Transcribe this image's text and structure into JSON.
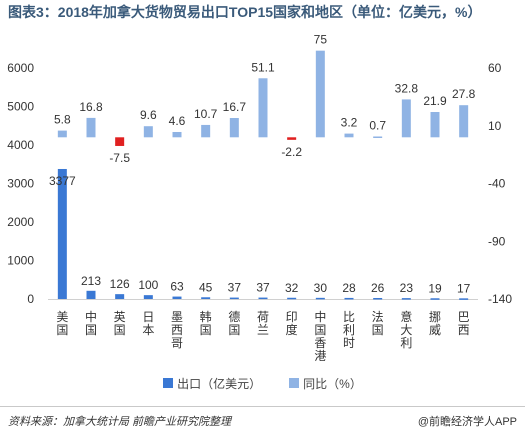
{
  "title": "图表3：2018年加拿大货物贸易出口TOP15国家和地区（单位：亿美元，%）",
  "footer": {
    "source": "资料来源：加拿大统计局 前瞻产业研究院整理",
    "brand": "@前瞻经济学人APP"
  },
  "colors": {
    "export_bar": "#3a78d4",
    "growth_bar": "#8fb3e4",
    "negative_growth": "#e02020"
  },
  "chart_data": {
    "type": "bar",
    "categories": [
      "美国",
      "中国",
      "英国",
      "日本",
      "墨西哥",
      "韩国",
      "德国",
      "荷兰",
      "印度",
      "中国香港",
      "比利时",
      "法国",
      "意大利",
      "挪威",
      "巴西"
    ],
    "series": [
      {
        "name": "出口（亿美元）",
        "axis": "left",
        "values": [
          3377,
          213,
          126,
          100,
          63,
          45,
          37,
          37,
          32,
          30,
          28,
          26,
          23,
          19,
          17
        ]
      },
      {
        "name": "同比（%）",
        "axis": "right",
        "values": [
          5.8,
          16.8,
          -7.5,
          9.6,
          4.6,
          10.7,
          16.7,
          51.1,
          -2.2,
          75,
          3.2,
          0.7,
          32.8,
          21.9,
          27.8
        ]
      }
    ],
    "y_left": {
      "min": 0,
      "max": 6000,
      "ticks": [
        0,
        1000,
        2000,
        3000,
        4000,
        5000,
        6000
      ]
    },
    "y_right": {
      "min": -140,
      "max": 60,
      "ticks": [
        -140,
        -90,
        -40,
        10,
        60
      ]
    },
    "legend_position": "bottom",
    "grid": false
  }
}
